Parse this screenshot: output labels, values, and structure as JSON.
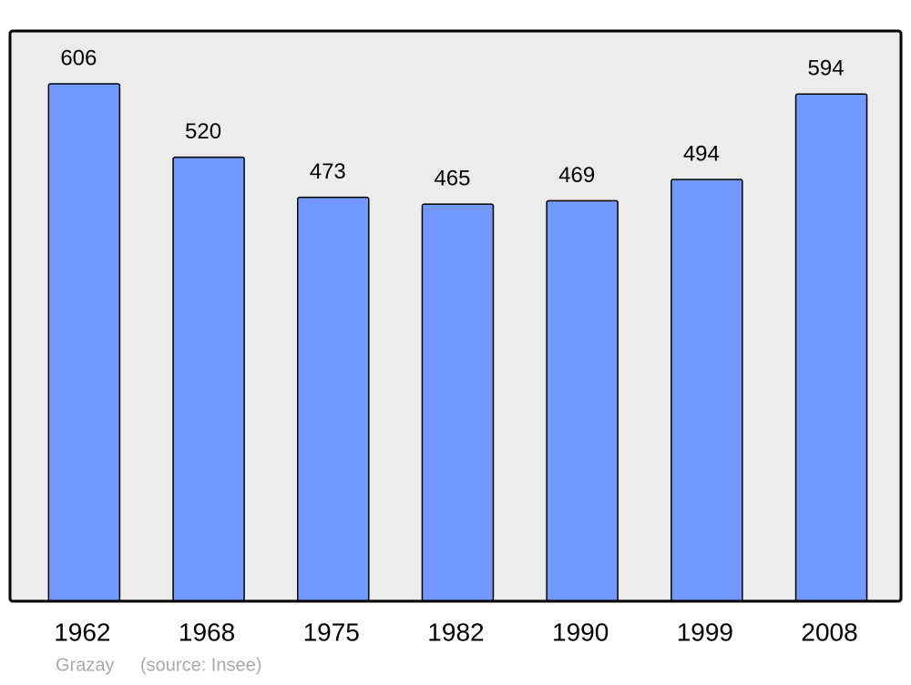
{
  "chart_data": {
    "type": "bar",
    "categories": [
      "1962",
      "1968",
      "1975",
      "1982",
      "1990",
      "1999",
      "2008"
    ],
    "values": [
      606,
      520,
      473,
      465,
      469,
      494,
      594
    ],
    "color": "#7399ff",
    "caption": "Grazay",
    "source": "(source: Insee)"
  }
}
